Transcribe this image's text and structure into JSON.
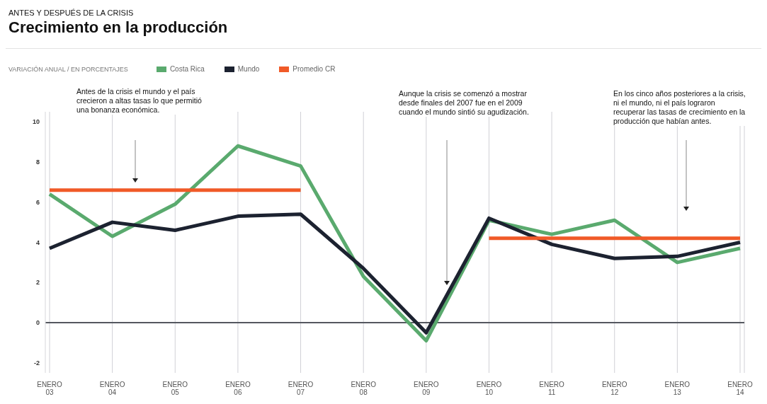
{
  "chart_data": {
    "type": "line",
    "subtitle": "ANTES Y DESPUÉS DE LA CRISIS",
    "title": "Crecimiento en la producción",
    "categories": [
      "ENERO 03",
      "ENERO 04",
      "ENERO 05",
      "ENERO 06",
      "ENERO 07",
      "ENERO 08",
      "ENERO 09",
      "ENERO 10",
      "ENERO 11",
      "ENERO 12",
      "ENERO 13",
      "ENERO 14"
    ],
    "series": [
      {
        "name": "Costa Rica",
        "color": "#5aaa6e",
        "values": [
          6.4,
          4.3,
          5.9,
          8.8,
          7.8,
          2.3,
          -0.9,
          5.1,
          4.4,
          5.1,
          3.0,
          3.7
        ]
      },
      {
        "name": "Mundo",
        "color": "#1c2230",
        "values": [
          3.7,
          5.0,
          4.6,
          5.3,
          5.4,
          2.7,
          -0.5,
          5.2,
          3.9,
          3.2,
          3.3,
          4.0
        ]
      },
      {
        "name": "Promedio CR",
        "color": "#f05a28",
        "values": [
          6.6,
          6.6,
          6.6,
          6.6,
          6.6,
          null,
          null,
          4.2,
          4.2,
          4.2,
          4.2,
          4.2
        ]
      }
    ],
    "ylim": [
      -2.5,
      10.5
    ],
    "yticks": [
      -2,
      0,
      2,
      4,
      6,
      8,
      10
    ],
    "ref_lines": [
      {
        "axis": "y",
        "value": 0,
        "color": "#55585f"
      }
    ],
    "grid": "x",
    "legend": "top left",
    "marker": "none",
    "line_style": "solid",
    "annotations": [
      "VARIACIÓN ANUAL / EN PORCENTAJES",
      "Antes de la crisis el mundo y el país crecieron a altas tasas lo que permitió una bonanza económica.",
      "Aunque la crisis se comenzó a mostrar desde finales del 2007 fue en el 2009 cuando el mundo sintió su agudización.",
      "En los cinco años posteriores a la crisis, ni el mundo, ni el país lograron recuperar las tasas de crecimiento en la producción que habían antes."
    ]
  }
}
